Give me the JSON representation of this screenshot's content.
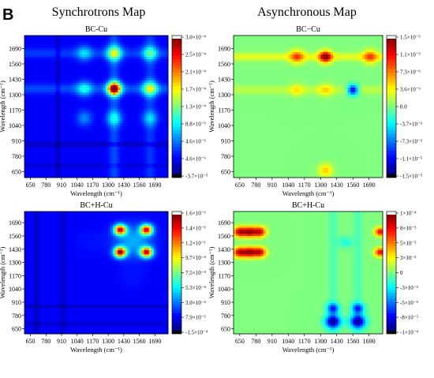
{
  "figure": {
    "panel_letter": "B",
    "column_titles": [
      "Synchrotrons Map",
      "Asynchronous Map"
    ]
  },
  "chart_data": [
    {
      "type": "heatmap",
      "map_kind": "synchronous",
      "title": "BC-Cu",
      "xlabel": "Wavelength (cm⁻¹)",
      "ylabel": "Wavelength (cm⁻¹)",
      "xlim": [
        600,
        1800
      ],
      "ylim": [
        600,
        1800
      ],
      "x_ticks": [
        650,
        780,
        910,
        1040,
        1170,
        1300,
        1430,
        1560,
        1690
      ],
      "y_ticks": [
        650,
        780,
        910,
        1040,
        1170,
        1300,
        1430,
        1560,
        1690
      ],
      "colorbar": {
        "min": -3.7e-05,
        "max": 0.0003,
        "tick_labels": [
          "3.0×10⁻⁴",
          "2.5×10⁻⁴",
          "2.1×10⁻⁴",
          "1.7×10⁻⁴",
          "1.3×10⁻⁴",
          "8.8×10⁻⁵",
          "4.6×10⁻⁵",
          "4.6×10⁻⁶",
          "-3.7×10⁻⁵"
        ]
      },
      "background_level": 0.12,
      "peaks": [
        {
          "x": 1350,
          "y": 1350,
          "level": 0.95,
          "spread": 40
        },
        {
          "x": 1350,
          "y": 1650,
          "level": 0.5,
          "spread": 45
        },
        {
          "x": 1650,
          "y": 1350,
          "level": 0.5,
          "spread": 45
        },
        {
          "x": 1650,
          "y": 1650,
          "level": 0.38,
          "spread": 45
        },
        {
          "x": 1100,
          "y": 1350,
          "level": 0.34,
          "spread": 45
        },
        {
          "x": 1350,
          "y": 1100,
          "level": 0.34,
          "spread": 45
        },
        {
          "x": 1100,
          "y": 1650,
          "level": 0.3,
          "spread": 45
        },
        {
          "x": 1650,
          "y": 1100,
          "level": 0.3,
          "spread": 45
        },
        {
          "x": 1100,
          "y": 1100,
          "level": 0.26,
          "spread": 45
        }
      ],
      "stripes": [
        {
          "axis": "x",
          "at": 1350,
          "level": 0.08,
          "spread": 30
        },
        {
          "axis": "y",
          "at": 1350,
          "level": 0.08,
          "spread": 30
        },
        {
          "axis": "x",
          "at": 1650,
          "level": 0.06,
          "spread": 30
        },
        {
          "axis": "y",
          "at": 1650,
          "level": 0.06,
          "spread": 30
        },
        {
          "axis": "x",
          "at": 880,
          "level": -0.08,
          "spread": 10
        },
        {
          "axis": "y",
          "at": 880,
          "level": -0.08,
          "spread": 10
        },
        {
          "axis": "y",
          "at": 700,
          "level": -0.06,
          "spread": 8
        }
      ]
    },
    {
      "type": "heatmap",
      "map_kind": "asynchronous",
      "title": "BC−Cu",
      "xlabel": "Wavelength (cm⁻¹)",
      "ylabel": "Wavelength (cm⁻¹)",
      "xlim": [
        600,
        1800
      ],
      "ylim": [
        600,
        1800
      ],
      "x_ticks": [
        650,
        780,
        910,
        1040,
        1170,
        1300,
        1430,
        1560,
        1690
      ],
      "y_ticks": [
        650,
        780,
        910,
        1040,
        1170,
        1300,
        1430,
        1560,
        1690
      ],
      "colorbar": {
        "min": -1.5e-05,
        "max": 1.5e-05,
        "tick_labels": [
          "1.5×10⁻⁵",
          "1.1×10⁻⁵",
          "7.3×10⁻⁶",
          "3.6×10⁻⁶",
          "0.0",
          "-3.7×10⁻⁶",
          "-7.3×10⁻⁶",
          "-1.1×10⁻⁵",
          "-1.5×10⁻⁵"
        ]
      },
      "background_level": 0.5,
      "peaks": [
        {
          "x": 1340,
          "y": 1620,
          "level": 0.95,
          "spread": 35
        },
        {
          "x": 1110,
          "y": 1620,
          "level": 0.74,
          "spread": 40
        },
        {
          "x": 1700,
          "y": 1620,
          "level": 0.74,
          "spread": 40
        },
        {
          "x": 1560,
          "y": 1340,
          "level": 0.05,
          "spread": 30
        },
        {
          "x": 1340,
          "y": 1340,
          "level": 0.62,
          "spread": 40
        },
        {
          "x": 1110,
          "y": 1340,
          "level": 0.6,
          "spread": 40
        },
        {
          "x": 1340,
          "y": 660,
          "level": 0.68,
          "spread": 40
        }
      ],
      "stripes": [
        {
          "axis": "y",
          "at": 1620,
          "level": 0.1,
          "spread": 25
        },
        {
          "axis": "y",
          "at": 1340,
          "level": 0.06,
          "spread": 25
        }
      ]
    },
    {
      "type": "heatmap",
      "map_kind": "synchronous",
      "title": "BC+H-Cu",
      "xlabel": "Wavelength (cm⁻¹)",
      "ylabel": "Wavelength (cm⁻¹)",
      "xlim": [
        600,
        1800
      ],
      "ylim": [
        600,
        1800
      ],
      "x_ticks": [
        650,
        780,
        910,
        1040,
        1170,
        1300,
        1430,
        1560,
        1690
      ],
      "y_ticks": [
        650,
        780,
        910,
        1040,
        1170,
        1300,
        1430,
        1560,
        1690
      ],
      "colorbar": {
        "min": -0.00015,
        "max": 0.0016,
        "tick_labels": [
          "1.6×10⁻³",
          "1.4×10⁻³",
          "1.2×10⁻³",
          "9.7×10⁻⁴",
          "7.5×10⁻⁴",
          "5.3×10⁻⁴",
          "3.0×10⁻⁴",
          "7.9×10⁻⁵",
          "-1.5×10⁻⁴"
        ]
      },
      "background_level": 0.12,
      "peaks": [
        {
          "x": 1400,
          "y": 1400,
          "level": 0.95,
          "spread": 35
        },
        {
          "x": 1400,
          "y": 1620,
          "level": 0.9,
          "spread": 35
        },
        {
          "x": 1620,
          "y": 1400,
          "level": 0.9,
          "spread": 35
        },
        {
          "x": 1620,
          "y": 1620,
          "level": 0.88,
          "spread": 35
        },
        {
          "x": 1510,
          "y": 1510,
          "level": 0.3,
          "spread": 110
        },
        {
          "x": 1150,
          "y": 1500,
          "level": 0.14,
          "spread": 90
        },
        {
          "x": 1500,
          "y": 1150,
          "level": 0.14,
          "spread": 90
        }
      ],
      "stripes": [
        {
          "axis": "x",
          "at": 700,
          "level": -0.06,
          "spread": 15
        },
        {
          "axis": "x",
          "at": 920,
          "level": -0.06,
          "spread": 12
        },
        {
          "axis": "y",
          "at": 870,
          "level": -0.06,
          "spread": 10
        },
        {
          "axis": "y",
          "at": 700,
          "level": -0.06,
          "spread": 10
        }
      ]
    },
    {
      "type": "heatmap",
      "map_kind": "asynchronous",
      "title": "BC+H-Cu",
      "xlabel": "Wavelength (cm⁻¹)",
      "ylabel": "Wavelength (cm⁻¹)",
      "xlim": [
        600,
        1800
      ],
      "ylim": [
        600,
        1800
      ],
      "x_ticks": [
        650,
        780,
        910,
        1040,
        1170,
        1300,
        1430,
        1560,
        1690
      ],
      "y_ticks": [
        650,
        780,
        910,
        1040,
        1170,
        1300,
        1430,
        1560,
        1690
      ],
      "colorbar": {
        "min": -0.0001,
        "max": 0.0001,
        "tick_labels": [
          "1×10⁻⁴",
          "8×10⁻⁵",
          "5×10⁻⁵",
          "3×10⁻⁵",
          "0",
          "-3×10⁻⁵",
          "-5×10⁻⁵",
          "-8×10⁻⁵",
          "-1×10⁻⁴"
        ]
      },
      "background_level": 0.5,
      "peaks": [
        {
          "x": 650,
          "y": 1600,
          "level": 0.95,
          "spread": 35
        },
        {
          "x": 730,
          "y": 1600,
          "level": 0.95,
          "spread": 35
        },
        {
          "x": 810,
          "y": 1600,
          "level": 0.93,
          "spread": 35
        },
        {
          "x": 650,
          "y": 1400,
          "level": 0.95,
          "spread": 35
        },
        {
          "x": 730,
          "y": 1400,
          "level": 0.95,
          "spread": 35
        },
        {
          "x": 810,
          "y": 1400,
          "level": 0.93,
          "spread": 35
        },
        {
          "x": 1780,
          "y": 1600,
          "level": 0.9,
          "spread": 30
        },
        {
          "x": 1780,
          "y": 1400,
          "level": 0.9,
          "spread": 30
        },
        {
          "x": 1400,
          "y": 720,
          "level": 0.05,
          "spread": 45
        },
        {
          "x": 1600,
          "y": 720,
          "level": 0.05,
          "spread": 45
        },
        {
          "x": 1400,
          "y": 850,
          "level": 0.18,
          "spread": 35
        },
        {
          "x": 1600,
          "y": 850,
          "level": 0.18,
          "spread": 35
        },
        {
          "x": 1500,
          "y": 1500,
          "level": 0.4,
          "spread": 40
        }
      ],
      "stripes": [
        {
          "axis": "x",
          "at": 1400,
          "level": -0.05,
          "spread": 25
        },
        {
          "axis": "x",
          "at": 1600,
          "level": -0.05,
          "spread": 25
        }
      ]
    }
  ]
}
